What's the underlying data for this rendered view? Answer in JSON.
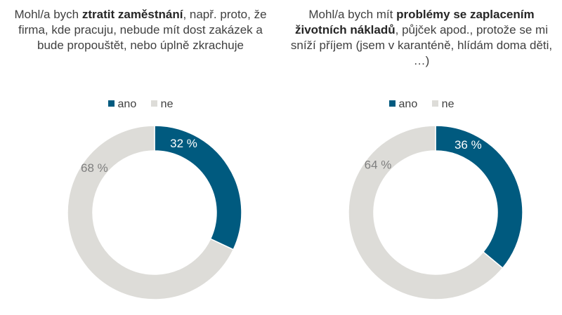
{
  "chart_data": [
    {
      "type": "pie",
      "title_parts": [
        {
          "text": "Mohl/a bych ",
          "bold": false
        },
        {
          "text": "ztratit zaměstnání",
          "bold": true
        },
        {
          "text": ", např. proto, že firma, kde pracuju, nebude mít dost zakázek a bude propouštět, nebo úplně zkrachuje",
          "bold": false
        }
      ],
      "legend_position": "top",
      "slices": [
        {
          "label": "ano",
          "value": 32,
          "data_label": "32 %",
          "color": "#005a7f",
          "label_color": "#ffffff"
        },
        {
          "label": "ne",
          "value": 68,
          "data_label": "68 %",
          "color": "#dddcd8",
          "label_color": "#7f7f7f"
        }
      ]
    },
    {
      "type": "pie",
      "title_parts": [
        {
          "text": "Mohl/a bych mít ",
          "bold": false
        },
        {
          "text": "problémy se zaplacením životních nákladů",
          "bold": true
        },
        {
          "text": ", půjček apod., protože se mi sníží příjem (jsem v karanténě, hlídám doma děti, …)",
          "bold": false
        }
      ],
      "legend_position": "top",
      "slices": [
        {
          "label": "ano",
          "value": 36,
          "data_label": "36 %",
          "color": "#005a7f",
          "label_color": "#ffffff"
        },
        {
          "label": "ne",
          "value": 64,
          "data_label": "64 %",
          "color": "#dddcd8",
          "label_color": "#7f7f7f"
        }
      ]
    }
  ]
}
